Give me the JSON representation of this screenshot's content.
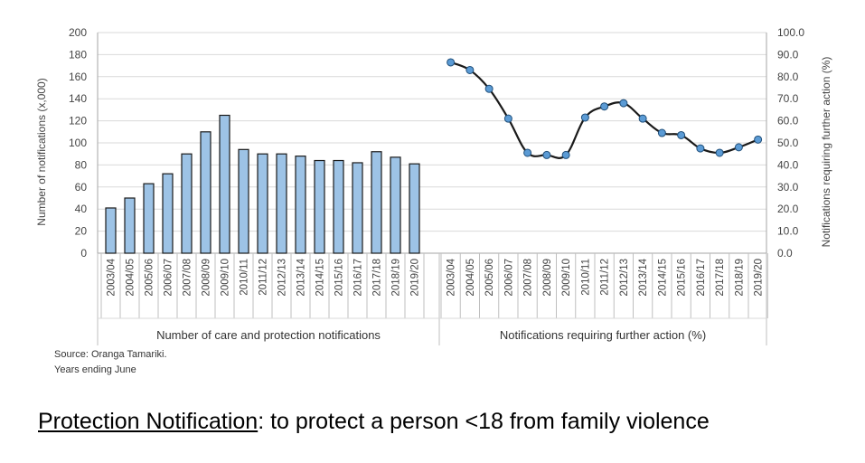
{
  "chart_data": [
    {
      "type": "bar",
      "categories": [
        "2003/04",
        "2004/05",
        "2005/06",
        "2006/07",
        "2007/08",
        "2008/09",
        "2009/10",
        "2010/11",
        "2011/12",
        "2012/13",
        "2013/14",
        "2014/15",
        "2015/16",
        "2016/17",
        "2017/18",
        "2018/19",
        "2019/20"
      ],
      "values": [
        41,
        50,
        63,
        72,
        90,
        110,
        125,
        94,
        90,
        90,
        88,
        84,
        84,
        82,
        92,
        87,
        81
      ],
      "ylabel": "Number of notifications (x,000)",
      "group_label": "Number of care and protection notifications",
      "ylim": [
        0,
        200
      ],
      "yticks": [
        "0",
        "20",
        "40",
        "60",
        "80",
        "100",
        "120",
        "140",
        "160",
        "180",
        "200"
      ],
      "bar_color": "#9dc3e6",
      "grid": true
    },
    {
      "type": "line",
      "categories": [
        "2003/04",
        "2004/05",
        "2005/06",
        "2006/07",
        "2007/08",
        "2008/09",
        "2009/10",
        "2010/11",
        "2011/12",
        "2012/13",
        "2013/14",
        "2014/15",
        "2015/16",
        "2016/17",
        "2017/18",
        "2018/19",
        "2019/20"
      ],
      "values": [
        86.5,
        83.0,
        74.5,
        61.0,
        45.5,
        44.5,
        44.5,
        61.5,
        66.5,
        68.0,
        61.0,
        54.5,
        53.5,
        47.5,
        45.5,
        48.0,
        51.5
      ],
      "ylabel": "Notifications requiring further action (%)",
      "group_label": "Notifications requiring further action (%)",
      "ylim": [
        0,
        100
      ],
      "yticks": [
        "0.0",
        "10.0",
        "20.0",
        "30.0",
        "40.0",
        "50.0",
        "60.0",
        "70.0",
        "80.0",
        "90.0",
        "100.0"
      ],
      "line_color": "#1a1a1a",
      "marker_color": "#5b9bd5",
      "grid": true
    }
  ],
  "source": "Source: Oranga Tamariki.",
  "note": "Years ending June",
  "caption": {
    "term": "Protection Notification",
    "rest": ": to protect a person <18 from family violence"
  }
}
